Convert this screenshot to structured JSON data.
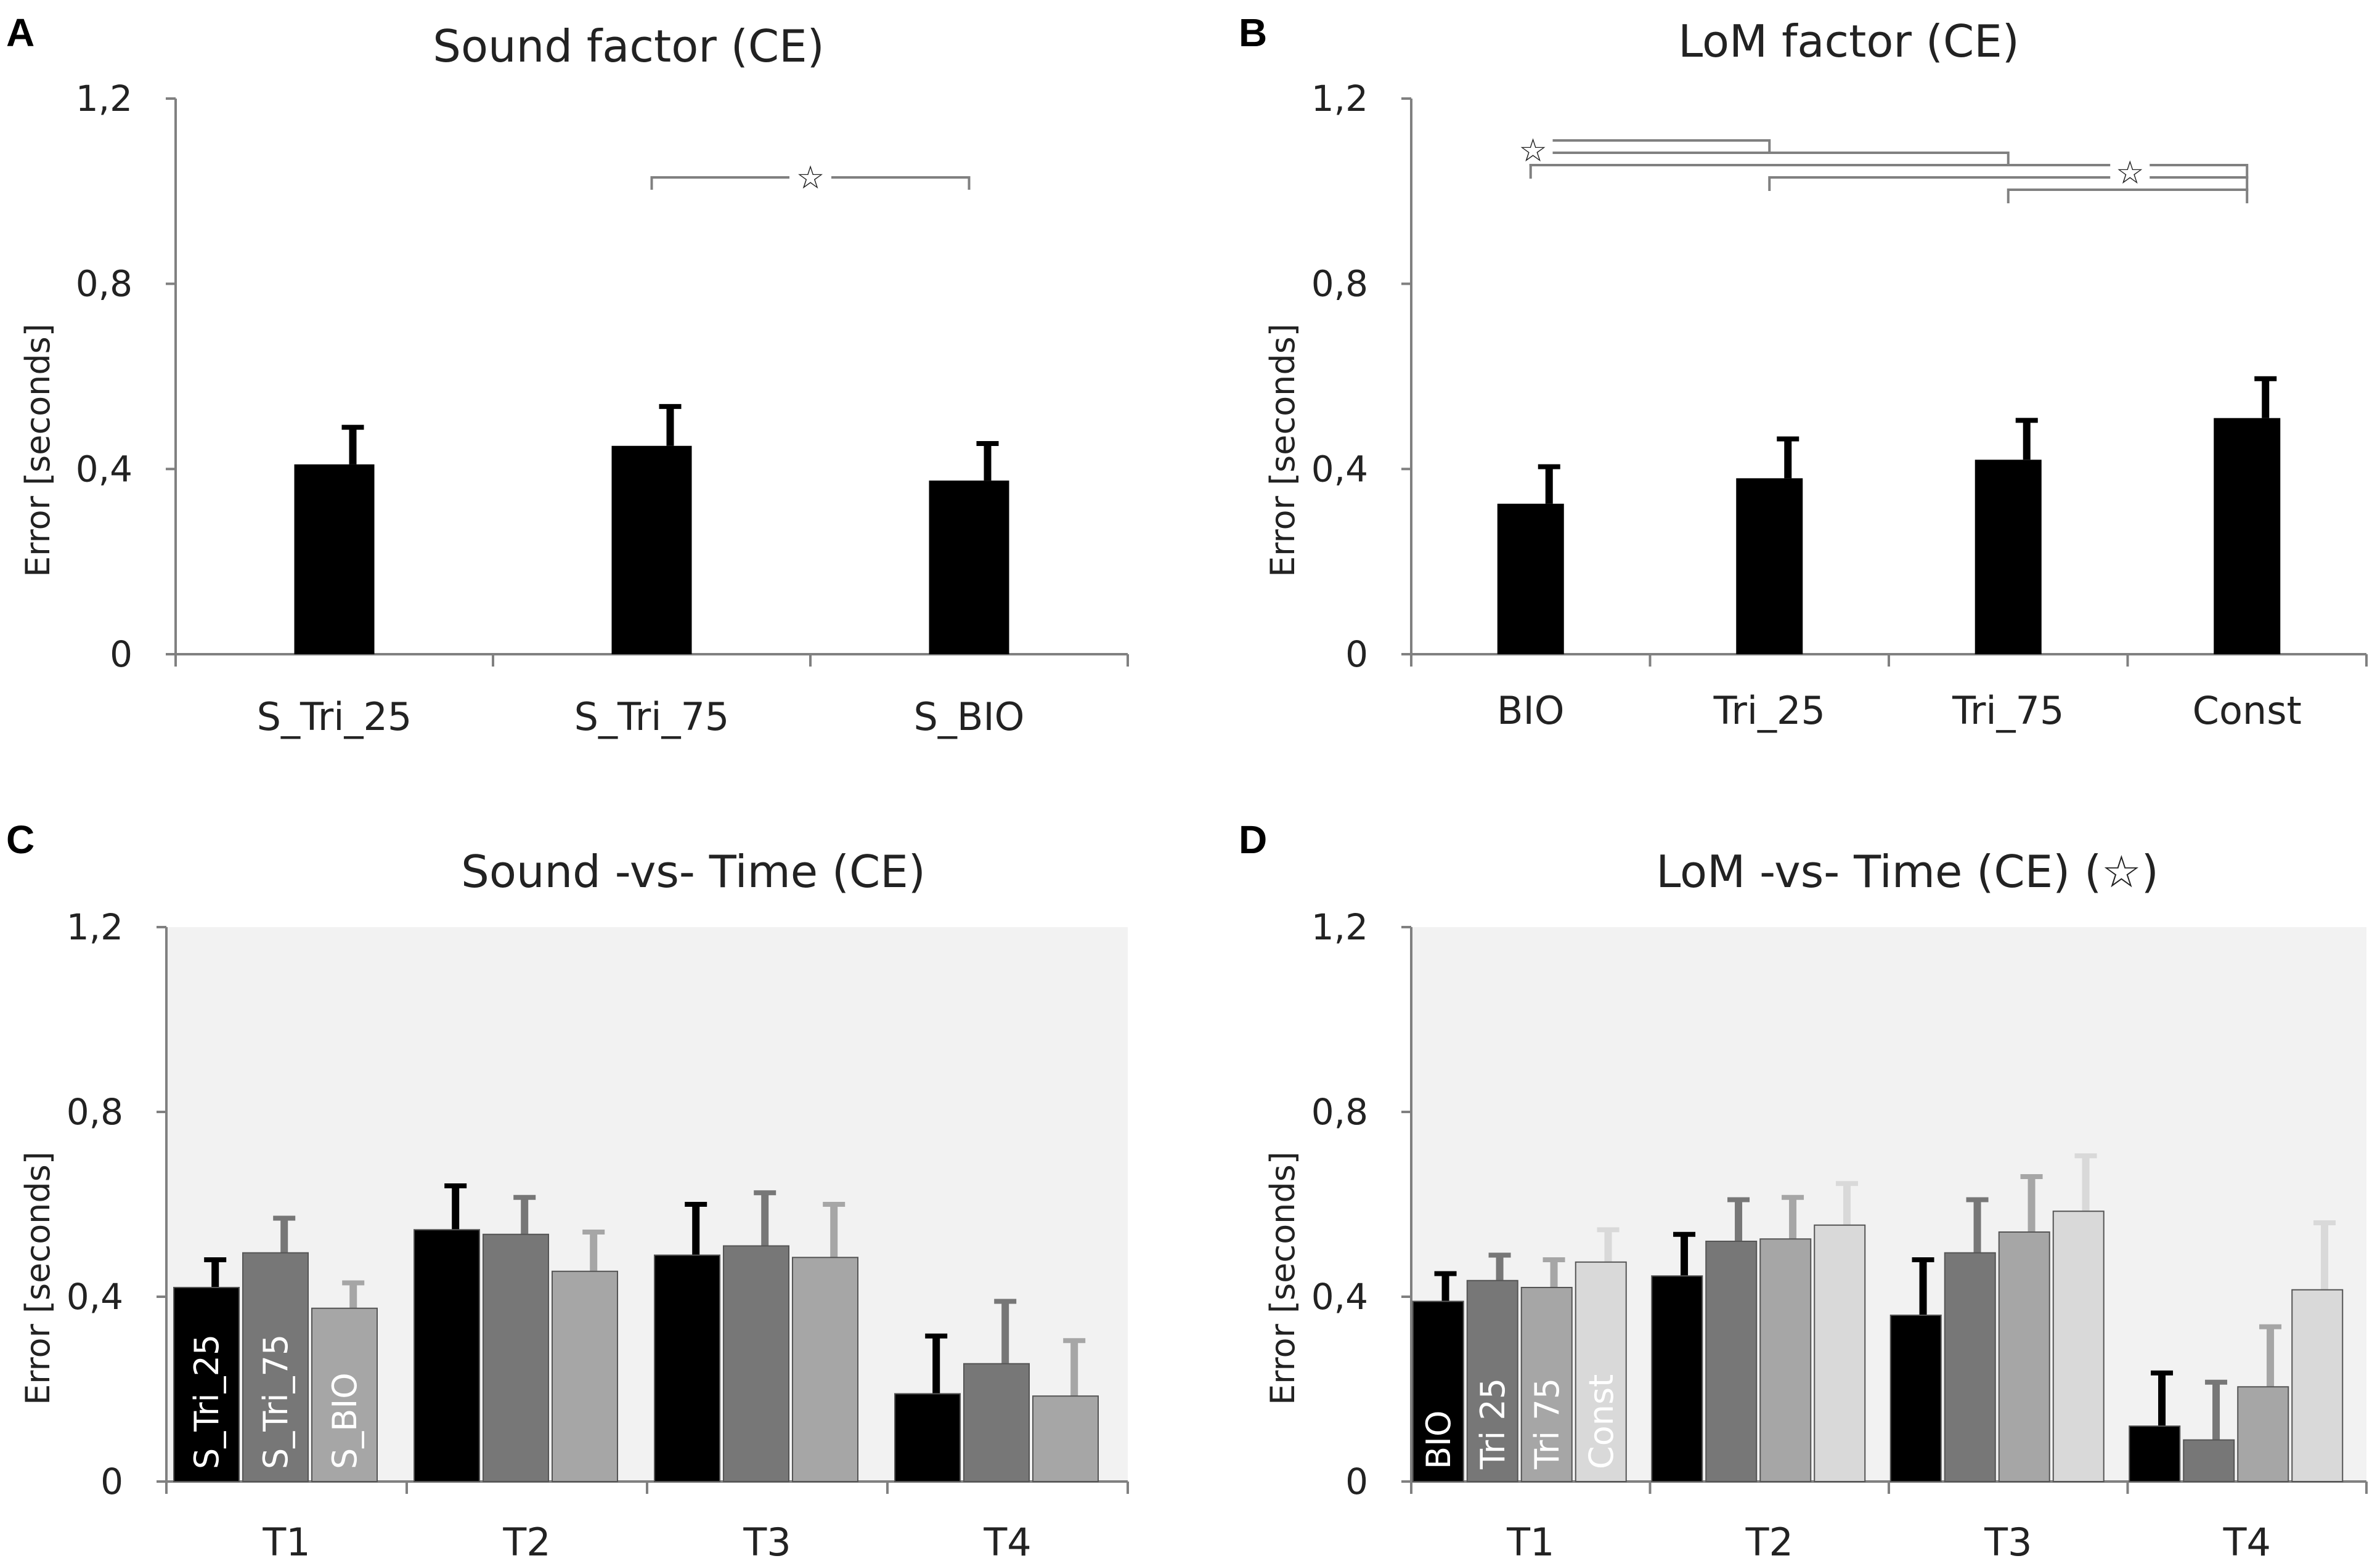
{
  "chart_data": [
    {
      "panel": "A",
      "type": "bar",
      "title": "Sound factor (CE)",
      "ylabel": "Error  [seconds]",
      "yticks": [
        "0",
        "0,4",
        "0,8",
        "1,2"
      ],
      "ylim": [
        0,
        1.2
      ],
      "categories": [
        "S_Tri_25",
        "S_Tri_75",
        "S_BIO"
      ],
      "values": [
        0.41,
        0.45,
        0.375
      ],
      "errors": [
        0.08,
        0.085,
        0.08
      ],
      "significance": [
        {
          "from": 1,
          "to": 2,
          "marker": "☆"
        }
      ]
    },
    {
      "panel": "B",
      "type": "bar",
      "title": "LoM factor (CE)",
      "ylabel": "Error  [seconds]",
      "yticks": [
        "0",
        "0,4",
        "0,8",
        "1,2"
      ],
      "ylim": [
        0,
        1.2
      ],
      "categories": [
        "BIO",
        "Tri_25",
        "Tri_75",
        "Const"
      ],
      "values": [
        0.325,
        0.38,
        0.42,
        0.51
      ],
      "errors": [
        0.08,
        0.085,
        0.085,
        0.085
      ],
      "significance": [
        {
          "from": 0,
          "to": 1,
          "marker": "☆"
        },
        {
          "from": 0,
          "to": 2,
          "marker": ""
        },
        {
          "from": 0,
          "to": 3,
          "marker": "☆"
        },
        {
          "from": 1,
          "to": 3,
          "marker": ""
        },
        {
          "from": 2,
          "to": 3,
          "marker": ""
        }
      ]
    },
    {
      "panel": "C",
      "type": "bar",
      "title": "Sound -vs- Time  (CE)",
      "ylabel": "Error  [seconds]",
      "yticks": [
        "0",
        "0,4",
        "0,8",
        "1,2"
      ],
      "ylim": [
        0,
        1.2
      ],
      "categories": [
        "T1",
        "T2",
        "T3",
        "T4"
      ],
      "series": [
        {
          "name": "S_Tri_25",
          "color": "#000000",
          "values": [
            0.42,
            0.545,
            0.49,
            0.19
          ],
          "errors": [
            0.06,
            0.095,
            0.11,
            0.125
          ]
        },
        {
          "name": "S_Tri_75",
          "color": "#777777",
          "values": [
            0.495,
            0.535,
            0.51,
            0.255
          ],
          "errors": [
            0.075,
            0.08,
            0.115,
            0.135
          ]
        },
        {
          "name": "S_BIO",
          "color": "#a6a6a6",
          "values": [
            0.375,
            0.455,
            0.485,
            0.185
          ],
          "errors": [
            0.055,
            0.085,
            0.115,
            0.12
          ]
        }
      ]
    },
    {
      "panel": "D",
      "type": "bar",
      "title": "LoM -vs- Time  (CE)  (☆)",
      "ylabel": "Error  [seconds]",
      "yticks": [
        "0",
        "0,4",
        "0,8",
        "1,2"
      ],
      "ylim": [
        0,
        1.2
      ],
      "categories": [
        "T1",
        "T2",
        "T3",
        "T4"
      ],
      "series": [
        {
          "name": "BIO",
          "color": "#000000",
          "values": [
            0.39,
            0.445,
            0.36,
            0.12
          ],
          "errors": [
            0.06,
            0.09,
            0.12,
            0.115
          ]
        },
        {
          "name": "Tri 25",
          "color": "#777777",
          "values": [
            0.435,
            0.52,
            0.495,
            0.09
          ],
          "errors": [
            0.055,
            0.09,
            0.115,
            0.125
          ]
        },
        {
          "name": "Tri 75",
          "color": "#a6a6a6",
          "values": [
            0.42,
            0.525,
            0.54,
            0.205
          ],
          "errors": [
            0.06,
            0.09,
            0.12,
            0.13
          ]
        },
        {
          "name": "Const",
          "color": "#d9d9d9",
          "values": [
            0.475,
            0.555,
            0.585,
            0.415
          ],
          "errors": [
            0.07,
            0.09,
            0.12,
            0.145
          ]
        }
      ]
    }
  ]
}
